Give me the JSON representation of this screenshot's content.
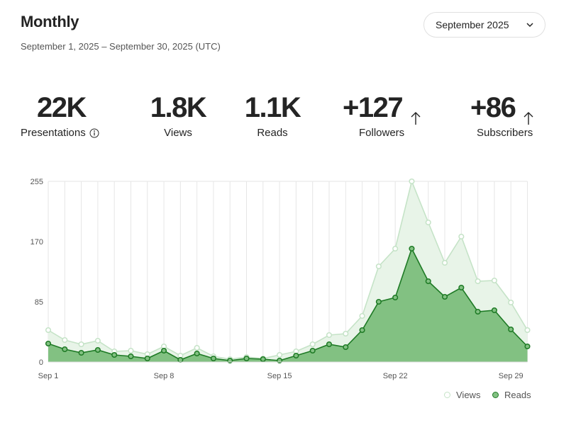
{
  "header": {
    "title": "Monthly",
    "date_range": "September 1, 2025 – September 30, 2025 (UTC)",
    "month_select": "September 2025"
  },
  "stats": [
    {
      "value": "22K",
      "label": "Presentations",
      "arrow": false,
      "info": true
    },
    {
      "value": "1.8K",
      "label": "Views",
      "arrow": false,
      "info": false
    },
    {
      "value": "1.1K",
      "label": "Reads",
      "arrow": false,
      "info": false
    },
    {
      "value": "+127",
      "label": "Followers",
      "arrow": true,
      "info": false
    },
    {
      "value": "+86",
      "label": "Subscribers",
      "arrow": true,
      "info": false
    }
  ],
  "icons": {
    "select": "chevron-down-icon",
    "info": "info-icon",
    "arrow": "arrow-up-icon"
  },
  "colors": {
    "views_line": "#c5e3c7",
    "views_fill": "#e8f4e8",
    "reads_line": "#1e7a25",
    "reads_fill": "#82c182",
    "grid": "#e6e6e6",
    "axis_text": "#555555"
  },
  "chart_data": {
    "type": "area",
    "x": [
      1,
      2,
      3,
      4,
      5,
      6,
      7,
      8,
      9,
      10,
      11,
      12,
      13,
      14,
      15,
      16,
      17,
      18,
      19,
      20,
      21,
      22,
      23,
      24,
      25,
      26,
      27,
      28,
      29,
      30
    ],
    "x_tick_labels": [
      "Sep 1",
      "Sep 8",
      "Sep 15",
      "Sep 22",
      "Sep 29"
    ],
    "x_tick_positions": [
      1,
      8,
      15,
      22,
      29
    ],
    "y_ticks": [
      0,
      85,
      170,
      255
    ],
    "ylim": [
      0,
      255
    ],
    "series": [
      {
        "name": "Views",
        "values": [
          45,
          31,
          25,
          30,
          15,
          16,
          11,
          22,
          9,
          20,
          8,
          4,
          7,
          5,
          10,
          15,
          25,
          38,
          40,
          65,
          135,
          160,
          255,
          197,
          140,
          177,
          114,
          115,
          84,
          45
        ]
      },
      {
        "name": "Reads",
        "values": [
          26,
          18,
          13,
          17,
          10,
          8,
          5,
          16,
          3,
          12,
          5,
          2,
          5,
          4,
          2,
          9,
          16,
          25,
          21,
          45,
          85,
          91,
          160,
          114,
          92,
          105,
          71,
          73,
          46,
          22
        ]
      }
    ],
    "legend": [
      "Views",
      "Reads"
    ],
    "legend_position": "bottom-right"
  }
}
